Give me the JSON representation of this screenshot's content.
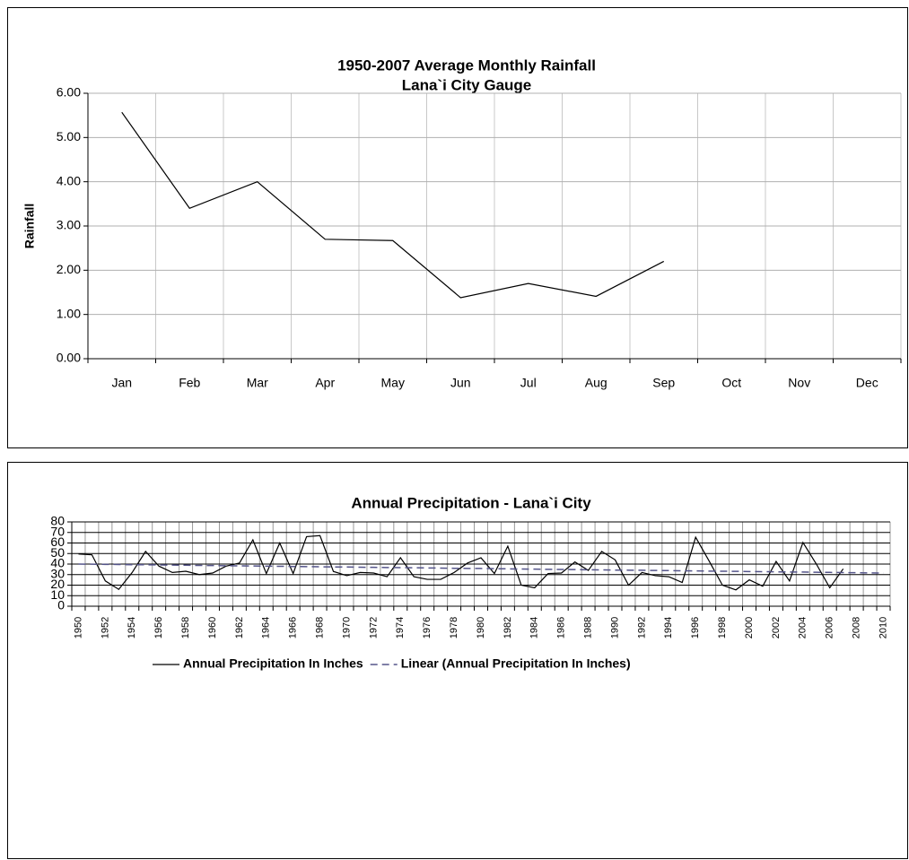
{
  "chart_data": [
    {
      "type": "line",
      "title": "1950-2007 Average Monthly Rainfall",
      "subtitle": "Lana`i City Gauge",
      "y_label": "Rainfall",
      "categories": [
        "Jan",
        "Feb",
        "Mar",
        "Apr",
        "May",
        "Jun",
        "Jul",
        "Aug",
        "Sep",
        "Oct",
        "Nov",
        "Dec"
      ],
      "series": [
        {
          "name": null,
          "color": "#000000",
          "values": [
            5.57,
            3.4,
            4.0,
            2.7,
            2.67,
            1.38,
            1.7,
            1.41,
            2.2,
            null,
            null,
            null
          ]
        }
      ],
      "ylim": [
        0,
        6
      ],
      "yticks": [
        {
          "value": 0,
          "label": "0.00"
        },
        {
          "value": 1,
          "label": "1.00"
        },
        {
          "value": 2,
          "label": "2.00"
        },
        {
          "value": 3,
          "label": "3.00"
        },
        {
          "value": 4,
          "label": "4.00"
        },
        {
          "value": 5,
          "label": "5.00"
        },
        {
          "value": 6,
          "label": "6.00"
        }
      ],
      "grid": true
    },
    {
      "type": "line",
      "title": "Annual Precipitation - Lana`i City",
      "categories": [
        "1950",
        null,
        "1952",
        null,
        "1954",
        null,
        "1956",
        null,
        "1958",
        null,
        "1960",
        null,
        "1962",
        null,
        "1964",
        null,
        "1966",
        null,
        "1968",
        null,
        "1970",
        null,
        "1972",
        null,
        "1974",
        null,
        "1976",
        null,
        "1978",
        null,
        "1980",
        null,
        "1982",
        null,
        "1984",
        null,
        "1986",
        null,
        "1988",
        null,
        "1990",
        null,
        "1992",
        null,
        "1994",
        null,
        "1996",
        null,
        "1998",
        null,
        "2000",
        null,
        "2002",
        null,
        "2004",
        null,
        "2006",
        null,
        "2008",
        null,
        "2010"
      ],
      "series": [
        {
          "name": "Annual Precipitation In Inches",
          "color": "#000000",
          "dashed": false,
          "values": [
            49.5,
            48.8,
            24,
            16,
            32,
            52,
            38,
            32,
            33.2,
            30,
            31.5,
            38,
            41,
            63,
            31,
            60,
            31,
            66,
            67,
            33,
            29,
            32,
            31.5,
            28,
            46,
            28,
            25.5,
            25.5,
            32,
            41,
            46,
            31,
            57,
            20,
            17.5,
            31,
            31.5,
            42,
            34,
            52,
            44,
            20,
            32,
            29,
            28,
            22.5,
            65.5,
            43,
            20,
            15.5,
            25,
            19,
            42.5,
            24,
            60.5,
            40,
            17.5,
            35.5,
            null,
            null,
            null
          ]
        },
        {
          "name": "Linear (Annual Precipitation In Inches)",
          "color": "#55558a",
          "dashed": true,
          "values": [
            40.0,
            39.9,
            39.7,
            39.6,
            39.4,
            39.3,
            39.2,
            39.0,
            38.9,
            38.7,
            38.6,
            38.4,
            38.3,
            38.2,
            38.0,
            37.9,
            37.7,
            37.6,
            37.4,
            37.3,
            37.2,
            37.0,
            36.9,
            36.7,
            36.6,
            36.5,
            36.3,
            36.2,
            36.0,
            35.9,
            35.8,
            35.6,
            35.5,
            35.3,
            35.2,
            35.0,
            34.9,
            34.8,
            34.6,
            34.5,
            34.3,
            34.2,
            34.1,
            33.9,
            33.8,
            33.6,
            33.5,
            33.3,
            33.2,
            33.1,
            32.9,
            32.8,
            32.6,
            32.5,
            32.4,
            32.2,
            32.1,
            31.9,
            31.8,
            31.6,
            31.5
          ]
        }
      ],
      "ylim": [
        0,
        80
      ],
      "yticks": [
        0,
        10,
        20,
        30,
        40,
        50,
        60,
        70,
        80
      ],
      "grid": true,
      "legend": "bottom"
    }
  ]
}
